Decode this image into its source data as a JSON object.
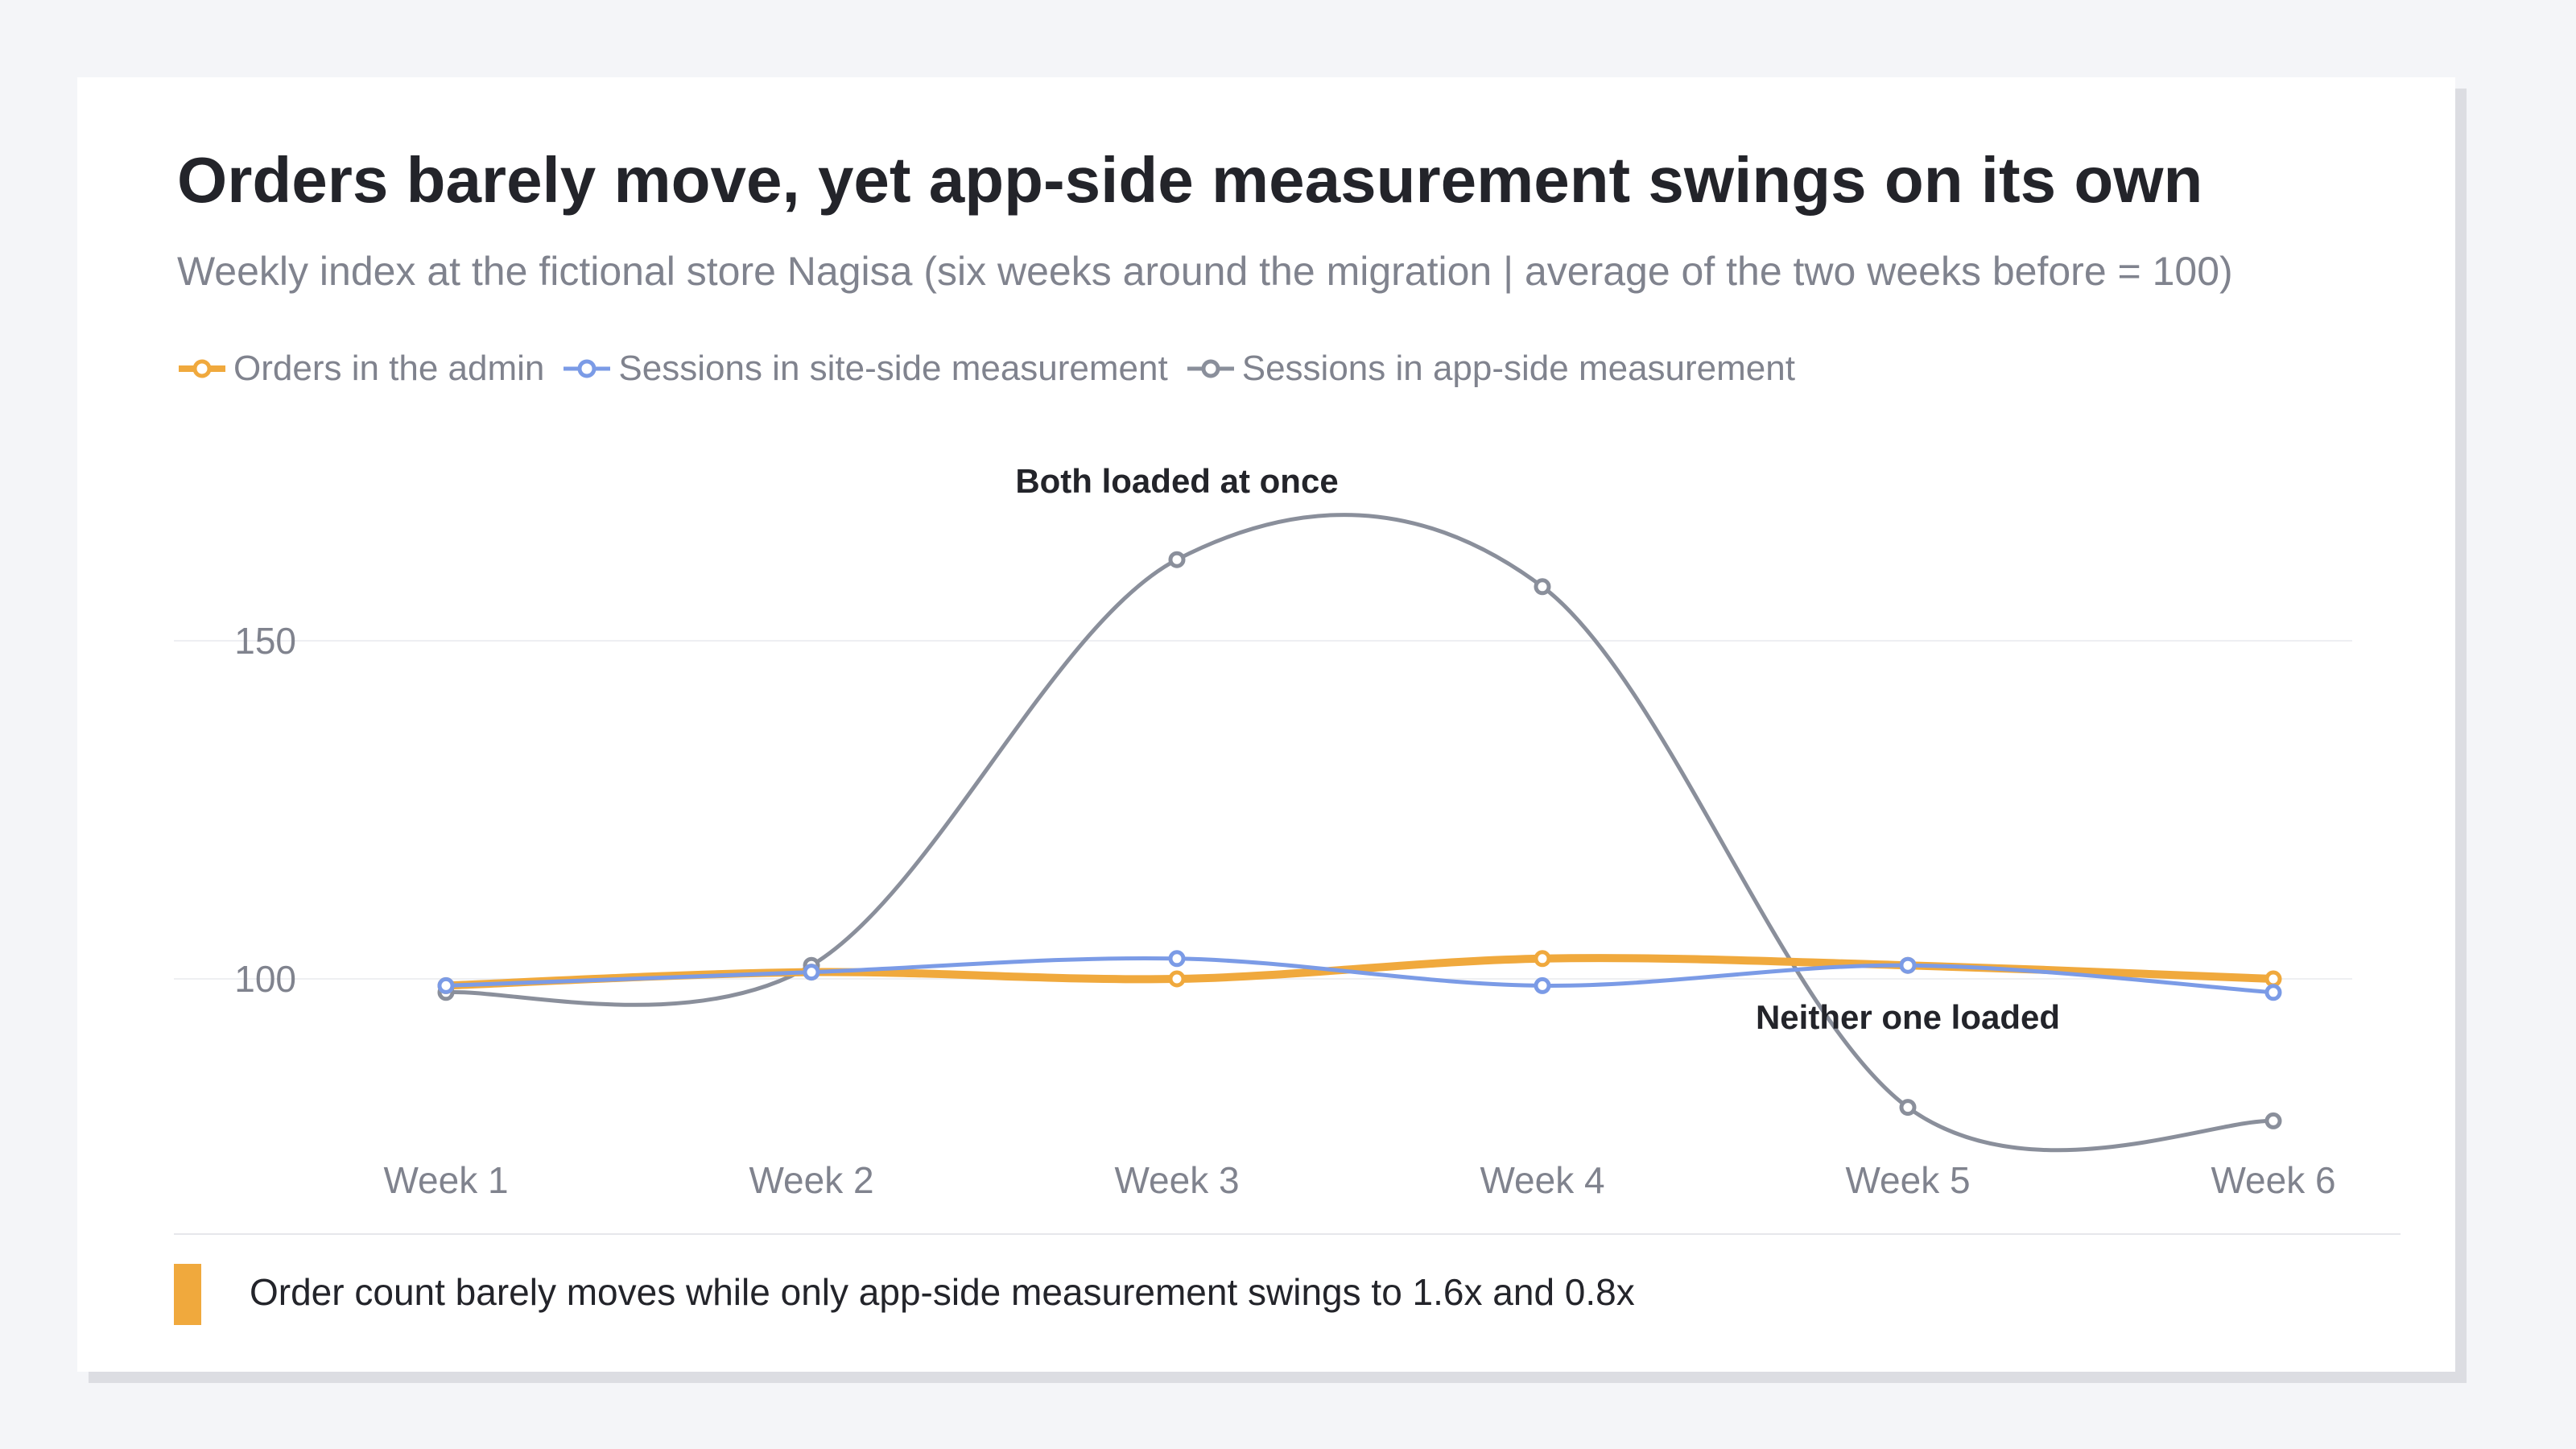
{
  "title": "Orders barely move, yet app-side measurement swings on its own",
  "subtitle": "Weekly index at the fictional store Nagisa (six weeks around the migration | average of the two weeks before = 100)",
  "chart_data": {
    "type": "line",
    "x": [
      "Week 1",
      "Week 2",
      "Week 3",
      "Week 4",
      "Week 5",
      "Week 6"
    ],
    "yticks": [
      100,
      150
    ],
    "ylim": [
      80,
      168
    ],
    "grid": true,
    "legend_position": "top-left",
    "series": [
      {
        "name": "Orders in the admin",
        "color": "#f0a93d",
        "values": [
          99,
          101,
          100,
          103,
          102,
          100
        ]
      },
      {
        "name": "Sessions in site-side measurement",
        "color": "#7b9be6",
        "values": [
          99,
          101,
          103,
          99,
          102,
          98
        ]
      },
      {
        "name": "Sessions in app-side measurement",
        "color": "#8a8f9b",
        "values": [
          98,
          102,
          162,
          158,
          81,
          79
        ]
      }
    ],
    "annotations": [
      {
        "text": "Both loaded at once",
        "x": "Week 3"
      },
      {
        "text": "Neither one loaded",
        "x": "Week 5"
      }
    ]
  },
  "footer": {
    "accent_color": "#f0a93d",
    "text": "Order count barely moves while only app-side measurement swings to 1.6x and 0.8x"
  }
}
